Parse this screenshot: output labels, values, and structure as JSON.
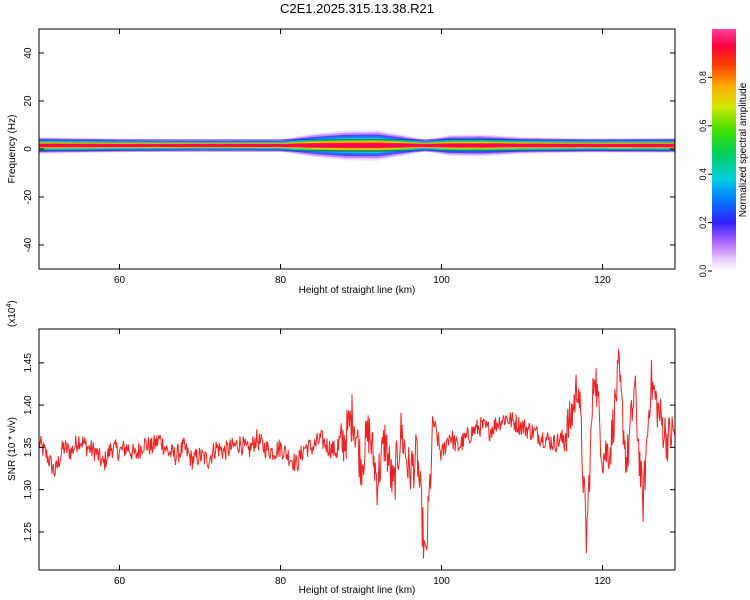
{
  "title": "C2E1.2025.315.13.38.R21",
  "chart_data": [
    {
      "type": "heatmap",
      "xlabel": "Height of straight line (km)",
      "ylabel": "Frequency (Hz)",
      "xlim": [
        50,
        129
      ],
      "ylim": [
        -50,
        50
      ],
      "xticks": [
        "60",
        "80",
        "100",
        "120"
      ],
      "xtick_values": [
        60,
        80,
        100,
        120
      ],
      "yticks": [
        "40",
        "20",
        "0",
        "-20",
        "-40"
      ],
      "ytick_values": [
        40,
        20,
        0,
        -20,
        -40
      ],
      "colorbar": {
        "label": "Normalized spectral amplitude",
        "ticks": [
          "0.0",
          "0.2",
          "0.4",
          "0.6",
          "0.8"
        ],
        "tick_values": [
          0.0,
          0.2,
          0.4,
          0.6,
          0.8
        ],
        "range": [
          0,
          1
        ]
      },
      "band": {
        "core_frequency": 1.5,
        "halfwidth_profile": [
          {
            "x": 50,
            "hw": 3.2
          },
          {
            "x": 60,
            "hw": 2.5
          },
          {
            "x": 70,
            "hw": 2.2
          },
          {
            "x": 80,
            "hw": 2.3
          },
          {
            "x": 84,
            "hw": 4.5
          },
          {
            "x": 88,
            "hw": 5.8
          },
          {
            "x": 92,
            "hw": 6.0
          },
          {
            "x": 95,
            "hw": 4.2
          },
          {
            "x": 98,
            "hw": 2.2
          },
          {
            "x": 101,
            "hw": 4.0
          },
          {
            "x": 105,
            "hw": 4.2
          },
          {
            "x": 110,
            "hw": 3.2
          },
          {
            "x": 118,
            "hw": 2.6
          },
          {
            "x": 129,
            "hw": 2.8
          }
        ]
      }
    },
    {
      "type": "line",
      "xlabel": "Height of straight line (km)",
      "ylabel": "SNR (10 * v/v)",
      "yunit": "(x10^4)",
      "xlim": [
        50,
        129
      ],
      "ylim": [
        1.205,
        1.49
      ],
      "xticks": [
        "60",
        "80",
        "100",
        "120"
      ],
      "xtick_values": [
        60,
        80,
        100,
        120
      ],
      "yticks": [
        "1.25",
        "1.30",
        "1.35",
        "1.40",
        "1.45"
      ],
      "ytick_values": [
        1.25,
        1.3,
        1.35,
        1.4,
        1.45
      ],
      "series_color": "#ee2222",
      "series": [
        {
          "values_x": [
            50,
            51,
            52,
            53,
            54,
            55,
            56,
            57,
            58,
            59,
            60,
            61,
            62,
            63,
            64,
            65,
            66,
            67,
            68,
            69,
            70,
            71,
            72,
            73,
            74,
            75,
            76,
            77,
            78,
            79,
            80,
            81,
            82,
            83,
            84,
            85,
            86,
            87,
            88,
            89,
            90,
            91,
            92,
            93,
            94,
            95,
            96,
            97,
            98,
            99,
            100,
            101,
            102,
            103,
            104,
            105,
            106,
            107,
            108,
            109,
            110,
            111,
            112,
            113,
            114,
            115,
            116,
            117,
            118,
            119,
            120,
            121,
            122,
            123,
            124,
            125,
            126,
            127,
            128,
            129
          ],
          "values_y": [
            1.355,
            1.34,
            1.32,
            1.35,
            1.345,
            1.36,
            1.35,
            1.345,
            1.33,
            1.35,
            1.345,
            1.35,
            1.34,
            1.355,
            1.35,
            1.36,
            1.345,
            1.34,
            1.35,
            1.335,
            1.34,
            1.335,
            1.35,
            1.345,
            1.35,
            1.355,
            1.345,
            1.36,
            1.35,
            1.345,
            1.35,
            1.34,
            1.33,
            1.35,
            1.35,
            1.36,
            1.35,
            1.345,
            1.36,
            1.39,
            1.33,
            1.37,
            1.31,
            1.36,
            1.3,
            1.37,
            1.32,
            1.34,
            1.21,
            1.38,
            1.34,
            1.365,
            1.35,
            1.36,
            1.37,
            1.375,
            1.37,
            1.38,
            1.385,
            1.38,
            1.375,
            1.37,
            1.365,
            1.36,
            1.355,
            1.36,
            1.38,
            1.43,
            1.24,
            1.45,
            1.34,
            1.35,
            1.44,
            1.33,
            1.42,
            1.28,
            1.43,
            1.39,
            1.36,
            1.37
          ]
        }
      ]
    }
  ]
}
